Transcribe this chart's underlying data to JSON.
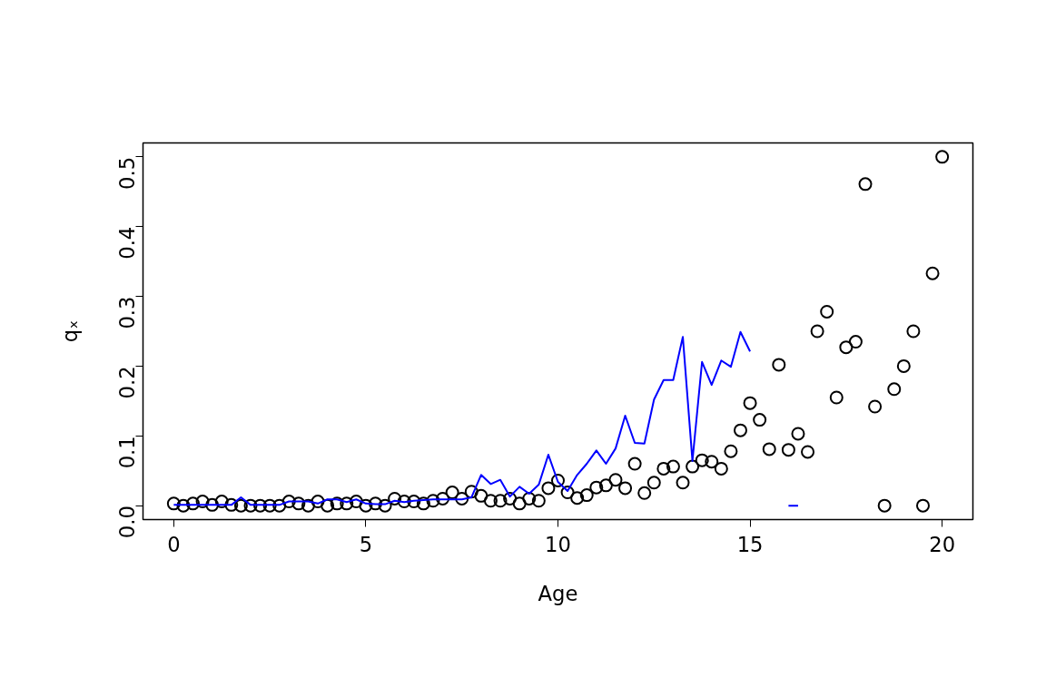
{
  "chart_data": {
    "type": "scatter",
    "xlabel": "Age",
    "ylabel": "qₓ",
    "xlim": [
      -0.8,
      20.8
    ],
    "ylim": [
      -0.02,
      0.52
    ],
    "xticks": [
      0,
      5,
      10,
      15,
      20
    ],
    "yticks": [
      {
        "value": 0,
        "label": "0.0"
      },
      {
        "value": 0.1,
        "label": "0.1"
      },
      {
        "value": 0.2,
        "label": "0.2"
      },
      {
        "value": 0.3,
        "label": "0.3"
      },
      {
        "value": 0.4,
        "label": "0.4"
      },
      {
        "value": 0.5,
        "label": "0.5"
      }
    ],
    "grid": false,
    "series": [
      {
        "marker": "circle",
        "color": "#000000",
        "x": [
          0,
          0.25,
          0.5,
          0.75,
          1,
          1.25,
          1.5,
          1.75,
          2,
          2.25,
          2.5,
          2.75,
          3,
          3.25,
          3.5,
          3.75,
          4,
          4.25,
          4.5,
          4.75,
          5,
          5.25,
          5.5,
          5.75,
          6,
          6.25,
          6.5,
          6.75,
          7,
          7.25,
          7.5,
          7.75,
          8,
          8.25,
          8.5,
          8.75,
          9,
          9.25,
          9.5,
          9.75,
          10,
          10.25,
          10.5,
          10.75,
          11,
          11.25,
          11.5,
          11.75,
          12,
          12.25,
          12.5,
          12.75,
          13,
          13.25,
          13.5,
          13.75,
          14,
          14.25,
          14.5,
          14.75,
          15,
          15.25,
          15.5,
          15.75,
          16,
          16.25,
          16.5,
          16.75,
          17,
          17.25,
          17.5,
          17.75,
          18,
          18.25,
          18.5,
          18.75,
          19,
          19.25,
          19.5,
          19.75,
          20
        ],
        "values": [
          0.003,
          0,
          0.003,
          0.006,
          0.001,
          0.006,
          0.001,
          0,
          0,
          0,
          0,
          0,
          0.006,
          0.003,
          0,
          0.006,
          0,
          0.003,
          0.003,
          0.006,
          0,
          0.003,
          0,
          0.01,
          0.006,
          0.006,
          0.003,
          0.007,
          0.01,
          0.019,
          0.01,
          0.02,
          0.014,
          0.007,
          0.007,
          0.01,
          0.003,
          0.01,
          0.007,
          0.025,
          0.036,
          0.019,
          0.011,
          0.015,
          0.026,
          0.029,
          0.037,
          0.025,
          0.06,
          0.018,
          0.033,
          0.053,
          0.056,
          0.033,
          0.056,
          0.065,
          0.063,
          0.053,
          0.078,
          0.108,
          0.147,
          0.123,
          0.081,
          0.202,
          0.08,
          0.103,
          0.077,
          0.25,
          0.278,
          0.155,
          0.227,
          0.235,
          0.461,
          0.142,
          0,
          0.167,
          0.2,
          0.25,
          0,
          0.333,
          0.5
        ]
      },
      {
        "type": "line",
        "marker": "none",
        "line_style": "solid",
        "color": "#0000ff",
        "x": [
          0,
          0.25,
          0.5,
          0.75,
          1,
          1.25,
          1.5,
          1.75,
          2,
          2.25,
          2.5,
          2.75,
          3,
          3.25,
          3.5,
          3.75,
          4,
          4.25,
          4.5,
          4.75,
          5,
          5.25,
          5.5,
          5.75,
          6,
          6.25,
          6.5,
          6.75,
          7,
          7.25,
          7.5,
          7.75,
          8,
          8.25,
          8.5,
          8.75,
          9,
          9.25,
          9.5,
          9.75,
          10,
          10.25,
          10.5,
          10.75,
          11,
          11.25,
          11.5,
          11.75,
          12,
          12.25,
          12.5,
          12.75,
          13,
          13.25,
          13.5,
          13.75,
          14,
          14.25,
          14.5,
          14.75,
          15,
          null,
          16,
          16.25
        ],
        "values": [
          0.001,
          0.001,
          0.001,
          0.001,
          0.001,
          0.001,
          0.001,
          0.012,
          0.001,
          0.001,
          0.001,
          0.001,
          0.006,
          0.006,
          0.006,
          0.003,
          0.009,
          0.009,
          0.005,
          0.009,
          0.003,
          0.002,
          0.002,
          0.007,
          0.005,
          0.007,
          0.008,
          0.009,
          0.009,
          0.009,
          0.009,
          0.012,
          0.044,
          0.031,
          0.037,
          0.013,
          0.027,
          0.017,
          0.03,
          0.073,
          0.034,
          0.021,
          0.044,
          0.06,
          0.079,
          0.06,
          0.082,
          0.129,
          0.09,
          0.089,
          0.152,
          0.18,
          0.18,
          0.242,
          0.064,
          0.206,
          0.173,
          0.208,
          0.199,
          0.249,
          0.221,
          null,
          0,
          0
        ]
      }
    ]
  }
}
